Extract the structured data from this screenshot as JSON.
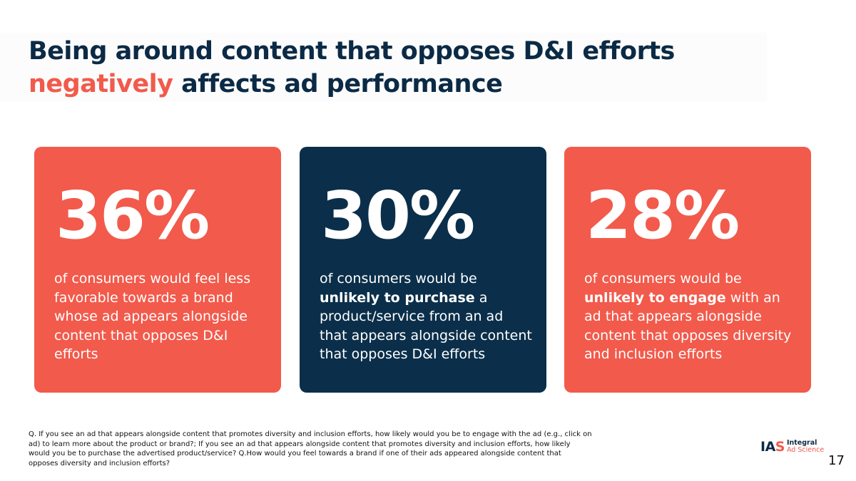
{
  "title": {
    "line1": "Being around content that opposes D&I efforts",
    "accent": "negatively",
    "line2_rest": " affects ad performance"
  },
  "cards": [
    {
      "stat": "36%",
      "desc_plain_1": "of consumers would feel less favorable towards a brand whose ad appears alongside content that opposes D&I efforts",
      "color": "#f25a4b"
    },
    {
      "stat": "30%",
      "desc_plain_1": "of consumers would be ",
      "desc_bold": "unlikely to purchase",
      "desc_plain_2": " a product/service from an ad that appears alongside content that opposes D&I efforts",
      "color": "#0b2f4a"
    },
    {
      "stat": "28%",
      "desc_plain_1": "of consumers would be ",
      "desc_bold": "unlikely to engage",
      "desc_plain_2": " with an ad that appears alongside content that opposes diversity and inclusion efforts",
      "color": "#f25a4b"
    }
  ],
  "footnote": "Q. If you see an ad that appears alongside content that promotes diversity and inclusion efforts, how likely would you be to engage with the ad (e.g., click on ad) to learn more about the product or brand?; If you see an ad that appears alongside content that promotes diversity and inclusion efforts, how likely would you be to purchase the advertised product/service? Q.How would you feel towards a brand if one of their ads appeared alongside content that opposes diversity and inclusion efforts?",
  "logo": {
    "mark_main": "IA",
    "mark_accent": "S",
    "line1": "Integral",
    "line2": "Ad Science"
  },
  "page_number": "17",
  "colors": {
    "navy": "#0b2a45",
    "coral": "#f25a4b"
  }
}
